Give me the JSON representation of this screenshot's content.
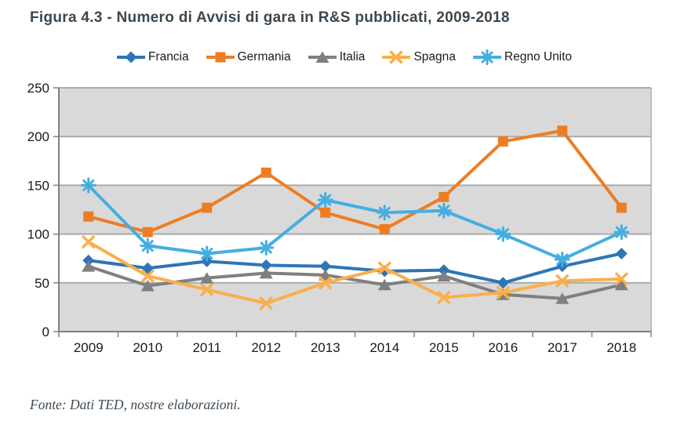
{
  "header": {
    "title": "Figura 4.3 - Numero di Avvisi di gara in R&S pubblicati, 2009-2018"
  },
  "footer": {
    "source": "Fonte: Dati TED, nostre elaborazioni."
  },
  "colors": {
    "title_text": "#3B4750",
    "band_gray": "#D9D9D9",
    "band_white": "#FFFFFF",
    "gridline": "#ABABAB",
    "axis": "#808080",
    "tick_label": "#1A1A1A",
    "source_text": "#3E4A54"
  },
  "chart_data": {
    "type": "line",
    "title": "Figura 4.3 - Numero di Avvisi di gara in R&S pubblicati, 2009-2018",
    "categories": [
      "2009",
      "2010",
      "2011",
      "2012",
      "2013",
      "2014",
      "2015",
      "2016",
      "2017",
      "2018"
    ],
    "series": [
      {
        "name": "Francia",
        "marker": "diamond",
        "color": "#2E75B6",
        "values": [
          73,
          65,
          72,
          68,
          67,
          62,
          63,
          50,
          67,
          80
        ]
      },
      {
        "name": "Germania",
        "marker": "square",
        "color": "#ED7D22",
        "values": [
          118,
          102,
          127,
          163,
          122,
          105,
          138,
          195,
          206,
          127
        ]
      },
      {
        "name": "Italia",
        "marker": "triangle",
        "color": "#7F7F7F",
        "values": [
          67,
          47,
          55,
          60,
          58,
          48,
          57,
          38,
          34,
          48
        ]
      },
      {
        "name": "Spagna",
        "marker": "x",
        "color": "#F9AF4B",
        "values": [
          92,
          57,
          43,
          29,
          50,
          65,
          35,
          40,
          52,
          54
        ]
      },
      {
        "name": "Regno Unito",
        "marker": "asterisk",
        "color": "#45AEE0",
        "values": [
          150,
          88,
          80,
          86,
          135,
          122,
          124,
          100,
          74,
          102
        ]
      }
    ],
    "xlabel": "",
    "ylabel": "",
    "ylim": [
      0,
      250
    ],
    "yticks": [
      0,
      50,
      100,
      150,
      200,
      250
    ],
    "grid": "horizontal",
    "plot_background": "alternating gray and white horizontal bands",
    "legend_position": "top"
  }
}
